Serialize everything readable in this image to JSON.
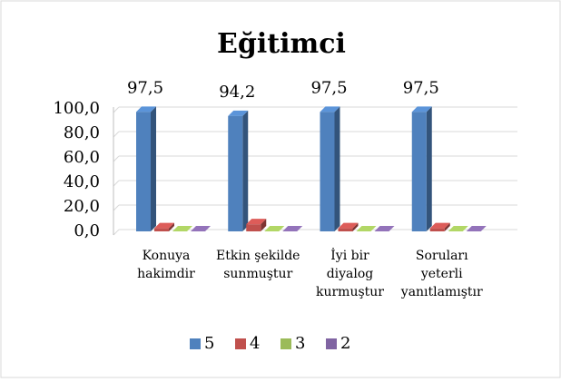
{
  "chart_data": {
    "type": "bar3d",
    "title": "Eğitimci",
    "categories": [
      [
        "Konuya",
        "hakimdir"
      ],
      [
        "Etkin şekilde",
        "sunmuştur"
      ],
      [
        "İyi bir",
        "diyalog",
        "kurmuştur"
      ],
      [
        "Soruları",
        "yeterli",
        "yanıtlamıştır"
      ]
    ],
    "series": [
      {
        "name": "5",
        "color": "#4f81bd",
        "values": [
          97.5,
          94.2,
          97.5,
          97.5
        ],
        "value_labels": [
          "97,5",
          "94,2",
          "97,5",
          "97,5"
        ]
      },
      {
        "name": "4",
        "color": "#c0504d",
        "values": [
          2.5,
          5.8,
          2.5,
          2.5
        ]
      },
      {
        "name": "3",
        "color": "#9bbb59",
        "values": [
          0,
          0,
          0,
          0
        ]
      },
      {
        "name": "2",
        "color": "#8064a2",
        "values": [
          0,
          0,
          0,
          0
        ]
      }
    ],
    "ylim": [
      0,
      100
    ],
    "yticks": [
      {
        "value": 0,
        "label": "0,0"
      },
      {
        "value": 20,
        "label": "20,0"
      },
      {
        "value": 40,
        "label": "40,0"
      },
      {
        "value": 60,
        "label": "60,0"
      },
      {
        "value": 80,
        "label": "80,0"
      },
      {
        "value": 100,
        "label": "100,0"
      }
    ],
    "grid": true,
    "legend": "bottom"
  }
}
